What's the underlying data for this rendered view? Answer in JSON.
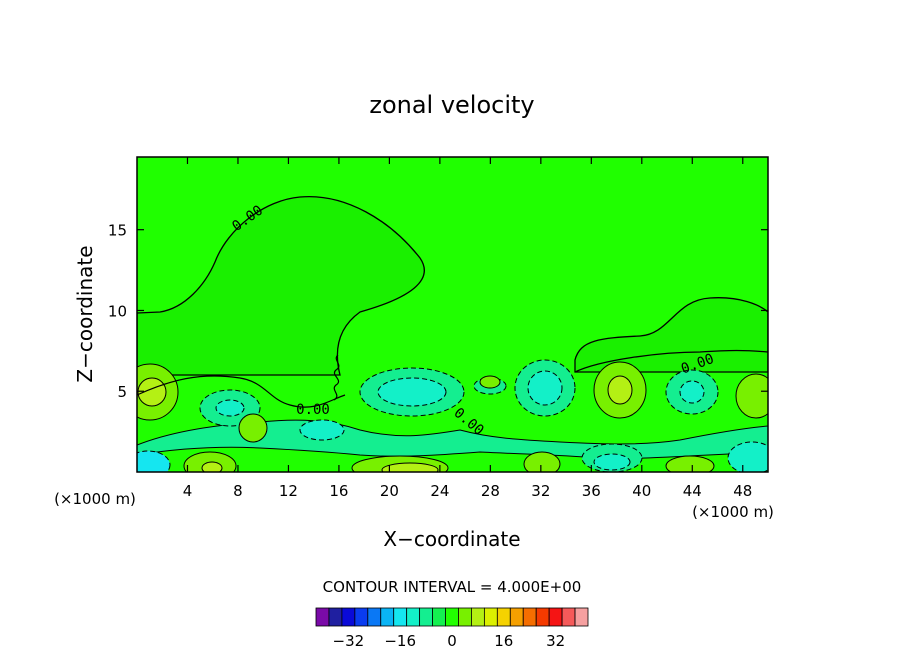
{
  "chart_data": {
    "type": "heatmap",
    "subtype": "filled-contour",
    "title": "zonal velocity",
    "xlabel": "X−coordinate",
    "ylabel": "Z−coordinate",
    "x_unit_left": "(×1000 m)",
    "x_unit_right": "(×1000 m)",
    "xlim": [
      0,
      50
    ],
    "ylim": [
      0,
      19.5
    ],
    "x_ticks": [
      "4",
      "8",
      "12",
      "16",
      "20",
      "24",
      "28",
      "32",
      "36",
      "40",
      "44",
      "48"
    ],
    "y_ticks": [
      "5",
      "10",
      "15"
    ],
    "contour_label": "0.00",
    "contour_interval_text": "CONTOUR INTERVAL = 4.000E+00",
    "colorbar": {
      "labels": [
        "−32",
        "−16",
        "0",
        "16",
        "32"
      ],
      "colors": [
        "#7a0aa8",
        "#1f1fa0",
        "#0a0ad8",
        "#0a3cf0",
        "#0a78f5",
        "#0ab4f5",
        "#15e6f0",
        "#13f0c8",
        "#14ee90",
        "#14f050",
        "#22ff00",
        "#78f000",
        "#b4f014",
        "#dcf000",
        "#f5d200",
        "#f5a000",
        "#f56e00",
        "#f53a00",
        "#f51414",
        "#f55a5a",
        "#f5a0a0"
      ]
    }
  }
}
